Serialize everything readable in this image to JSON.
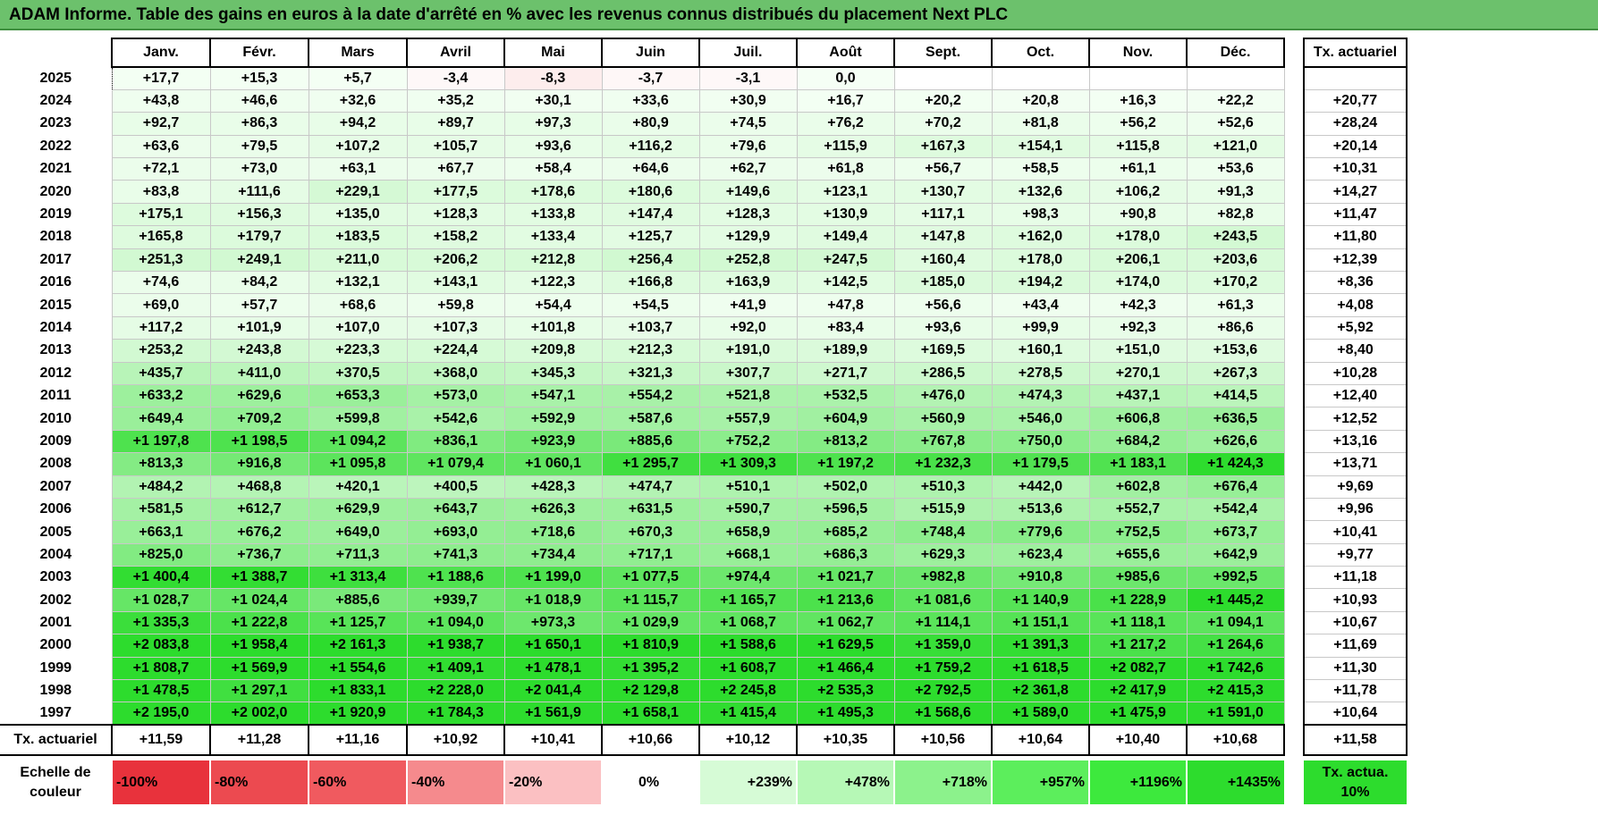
{
  "title": "ADAM Informe. Table des gains en euros à la date d'arrêté en % avec les revenus connus distribués du placement Next PLC",
  "months": [
    "Janv.",
    "Févr.",
    "Mars",
    "Avril",
    "Mai",
    "Juin",
    "Juil.",
    "Août",
    "Sept.",
    "Oct.",
    "Nov.",
    "Déc."
  ],
  "annual_header": "Tx. actuariel",
  "rows": [
    {
      "year": "2025",
      "values": [
        "+17,7",
        "+15,3",
        "+5,7",
        "-3,4",
        "-8,3",
        "-3,7",
        "-3,1",
        "0,0",
        "",
        "",
        "",
        ""
      ],
      "annual": ""
    },
    {
      "year": "2024",
      "values": [
        "+43,8",
        "+46,6",
        "+32,6",
        "+35,2",
        "+30,1",
        "+33,6",
        "+30,9",
        "+16,7",
        "+20,2",
        "+20,8",
        "+16,3",
        "+22,2"
      ],
      "annual": "+20,77"
    },
    {
      "year": "2023",
      "values": [
        "+92,7",
        "+86,3",
        "+94,2",
        "+89,7",
        "+97,3",
        "+80,9",
        "+74,5",
        "+76,2",
        "+70,2",
        "+81,8",
        "+56,2",
        "+52,6"
      ],
      "annual": "+28,24"
    },
    {
      "year": "2022",
      "values": [
        "+63,6",
        "+79,5",
        "+107,2",
        "+105,7",
        "+93,6",
        "+116,2",
        "+79,6",
        "+115,9",
        "+167,3",
        "+154,1",
        "+115,8",
        "+121,0"
      ],
      "annual": "+20,14"
    },
    {
      "year": "2021",
      "values": [
        "+72,1",
        "+73,0",
        "+63,1",
        "+67,7",
        "+58,4",
        "+64,6",
        "+62,7",
        "+61,8",
        "+56,7",
        "+58,5",
        "+61,1",
        "+53,6"
      ],
      "annual": "+10,31"
    },
    {
      "year": "2020",
      "values": [
        "+83,8",
        "+111,6",
        "+229,1",
        "+177,5",
        "+178,6",
        "+180,6",
        "+149,6",
        "+123,1",
        "+130,7",
        "+132,6",
        "+106,2",
        "+91,3"
      ],
      "annual": "+14,27"
    },
    {
      "year": "2019",
      "values": [
        "+175,1",
        "+156,3",
        "+135,0",
        "+128,3",
        "+133,8",
        "+147,4",
        "+128,3",
        "+130,9",
        "+117,1",
        "+98,3",
        "+90,8",
        "+82,8"
      ],
      "annual": "+11,47"
    },
    {
      "year": "2018",
      "values": [
        "+165,8",
        "+179,7",
        "+183,5",
        "+158,2",
        "+133,4",
        "+125,7",
        "+129,9",
        "+149,4",
        "+147,8",
        "+162,0",
        "+178,0",
        "+243,5"
      ],
      "annual": "+11,80"
    },
    {
      "year": "2017",
      "values": [
        "+251,3",
        "+249,1",
        "+211,0",
        "+206,2",
        "+212,8",
        "+256,4",
        "+252,8",
        "+247,5",
        "+160,4",
        "+178,0",
        "+206,1",
        "+203,6"
      ],
      "annual": "+12,39"
    },
    {
      "year": "2016",
      "values": [
        "+74,6",
        "+84,2",
        "+132,1",
        "+143,1",
        "+122,3",
        "+166,8",
        "+163,9",
        "+142,5",
        "+185,0",
        "+194,2",
        "+174,0",
        "+170,2"
      ],
      "annual": "+8,36"
    },
    {
      "year": "2015",
      "values": [
        "+69,0",
        "+57,7",
        "+68,6",
        "+59,8",
        "+54,4",
        "+54,5",
        "+41,9",
        "+47,8",
        "+56,6",
        "+43,4",
        "+42,3",
        "+61,3"
      ],
      "annual": "+4,08"
    },
    {
      "year": "2014",
      "values": [
        "+117,2",
        "+101,9",
        "+107,0",
        "+107,3",
        "+101,8",
        "+103,7",
        "+92,0",
        "+83,4",
        "+93,6",
        "+99,9",
        "+92,3",
        "+86,6"
      ],
      "annual": "+5,92"
    },
    {
      "year": "2013",
      "values": [
        "+253,2",
        "+243,8",
        "+223,3",
        "+224,4",
        "+209,8",
        "+212,3",
        "+191,0",
        "+189,9",
        "+169,5",
        "+160,1",
        "+151,0",
        "+153,6"
      ],
      "annual": "+8,40"
    },
    {
      "year": "2012",
      "values": [
        "+435,7",
        "+411,0",
        "+370,5",
        "+368,0",
        "+345,3",
        "+321,3",
        "+307,7",
        "+271,7",
        "+286,5",
        "+278,5",
        "+270,1",
        "+267,3"
      ],
      "annual": "+10,28"
    },
    {
      "year": "2011",
      "values": [
        "+633,2",
        "+629,6",
        "+653,3",
        "+573,0",
        "+547,1",
        "+554,2",
        "+521,8",
        "+532,5",
        "+476,0",
        "+474,3",
        "+437,1",
        "+414,5"
      ],
      "annual": "+12,40"
    },
    {
      "year": "2010",
      "values": [
        "+649,4",
        "+709,2",
        "+599,8",
        "+542,6",
        "+592,9",
        "+587,6",
        "+557,9",
        "+604,9",
        "+560,9",
        "+546,0",
        "+606,8",
        "+636,5"
      ],
      "annual": "+12,52"
    },
    {
      "year": "2009",
      "values": [
        "+1 197,8",
        "+1 198,5",
        "+1 094,2",
        "+836,1",
        "+923,9",
        "+885,6",
        "+752,2",
        "+813,2",
        "+767,8",
        "+750,0",
        "+684,2",
        "+626,6"
      ],
      "annual": "+13,16"
    },
    {
      "year": "2008",
      "values": [
        "+813,3",
        "+916,8",
        "+1 095,8",
        "+1 079,4",
        "+1 060,1",
        "+1 295,7",
        "+1 309,3",
        "+1 197,2",
        "+1 232,3",
        "+1 179,5",
        "+1 183,1",
        "+1 424,3"
      ],
      "annual": "+13,71"
    },
    {
      "year": "2007",
      "values": [
        "+484,2",
        "+468,8",
        "+420,1",
        "+400,5",
        "+428,3",
        "+474,7",
        "+510,1",
        "+502,0",
        "+510,3",
        "+442,0",
        "+602,8",
        "+676,4"
      ],
      "annual": "+9,69"
    },
    {
      "year": "2006",
      "values": [
        "+581,5",
        "+612,7",
        "+629,9",
        "+643,7",
        "+626,3",
        "+631,5",
        "+590,7",
        "+596,5",
        "+515,9",
        "+513,6",
        "+552,7",
        "+542,4"
      ],
      "annual": "+9,96"
    },
    {
      "year": "2005",
      "values": [
        "+663,1",
        "+676,2",
        "+649,0",
        "+693,0",
        "+718,6",
        "+670,3",
        "+658,9",
        "+685,2",
        "+748,4",
        "+779,6",
        "+752,5",
        "+673,7"
      ],
      "annual": "+10,41"
    },
    {
      "year": "2004",
      "values": [
        "+825,0",
        "+736,7",
        "+711,3",
        "+741,3",
        "+734,4",
        "+717,1",
        "+668,1",
        "+686,3",
        "+629,3",
        "+623,4",
        "+655,6",
        "+642,9"
      ],
      "annual": "+9,77"
    },
    {
      "year": "2003",
      "values": [
        "+1 400,4",
        "+1 388,7",
        "+1 313,4",
        "+1 188,6",
        "+1 199,0",
        "+1 077,5",
        "+974,4",
        "+1 021,7",
        "+982,8",
        "+910,8",
        "+985,6",
        "+992,5"
      ],
      "annual": "+11,18"
    },
    {
      "year": "2002",
      "values": [
        "+1 028,7",
        "+1 024,4",
        "+885,6",
        "+939,7",
        "+1 018,9",
        "+1 115,7",
        "+1 165,7",
        "+1 213,6",
        "+1 081,6",
        "+1 140,9",
        "+1 228,9",
        "+1 445,2"
      ],
      "annual": "+10,93"
    },
    {
      "year": "2001",
      "values": [
        "+1 335,3",
        "+1 222,8",
        "+1 125,7",
        "+1 094,0",
        "+973,3",
        "+1 029,9",
        "+1 068,7",
        "+1 062,7",
        "+1 114,1",
        "+1 151,1",
        "+1 118,1",
        "+1 094,1"
      ],
      "annual": "+10,67"
    },
    {
      "year": "2000",
      "values": [
        "+2 083,8",
        "+1 958,4",
        "+2 161,3",
        "+1 938,7",
        "+1 650,1",
        "+1 810,9",
        "+1 588,6",
        "+1 629,5",
        "+1 359,0",
        "+1 391,3",
        "+1 217,2",
        "+1 264,6"
      ],
      "annual": "+11,69"
    },
    {
      "year": "1999",
      "values": [
        "+1 808,7",
        "+1 569,9",
        "+1 554,6",
        "+1 409,1",
        "+1 478,1",
        "+1 395,2",
        "+1 608,7",
        "+1 466,4",
        "+1 759,2",
        "+1 618,5",
        "+2 082,7",
        "+1 742,6"
      ],
      "annual": "+11,30"
    },
    {
      "year": "1998",
      "values": [
        "+1 478,5",
        "+1 297,1",
        "+1 833,1",
        "+2 228,0",
        "+2 041,4",
        "+2 129,8",
        "+2 245,8",
        "+2 535,3",
        "+2 792,5",
        "+2 361,8",
        "+2 417,9",
        "+2 415,3"
      ],
      "annual": "+11,78"
    },
    {
      "year": "1997",
      "values": [
        "+2 195,0",
        "+2 002,0",
        "+1 920,9",
        "+1 784,3",
        "+1 561,9",
        "+1 658,1",
        "+1 415,4",
        "+1 495,3",
        "+1 568,6",
        "+1 589,0",
        "+1 475,9",
        "+1 591,0"
      ],
      "annual": "+10,64"
    }
  ],
  "totals": {
    "label": "Tx. actuariel",
    "values": [
      "+11,59",
      "+11,28",
      "+11,16",
      "+10,92",
      "+10,41",
      "+10,66",
      "+10,12",
      "+10,35",
      "+10,56",
      "+10,64",
      "+10,40",
      "+10,68"
    ],
    "annual": "+11,58"
  },
  "scale": {
    "label": "Echelle de couleur",
    "items": [
      {
        "text": "-100%",
        "color": "#e8323c"
      },
      {
        "text": "-80%",
        "color": "#ec4a50"
      },
      {
        "text": "-60%",
        "color": "#f05a5f"
      },
      {
        "text": "-40%",
        "color": "#f58a8d"
      },
      {
        "text": "-20%",
        "color": "#fbc0c2"
      },
      {
        "text": "0%",
        "color": "#ffffff"
      },
      {
        "text": "+239%",
        "color": "#d6fbd6"
      },
      {
        "text": "+478%",
        "color": "#b6f8b6"
      },
      {
        "text": "+718%",
        "color": "#8cf28c"
      },
      {
        "text": "+957%",
        "color": "#5cee5c"
      },
      {
        "text": "+1196%",
        "color": "#3de93d"
      },
      {
        "text": "+1435%",
        "color": "#2ddc2d"
      }
    ],
    "annual_label": "Tx. actua. 10%",
    "annual_color": "#2ddc2d"
  }
}
